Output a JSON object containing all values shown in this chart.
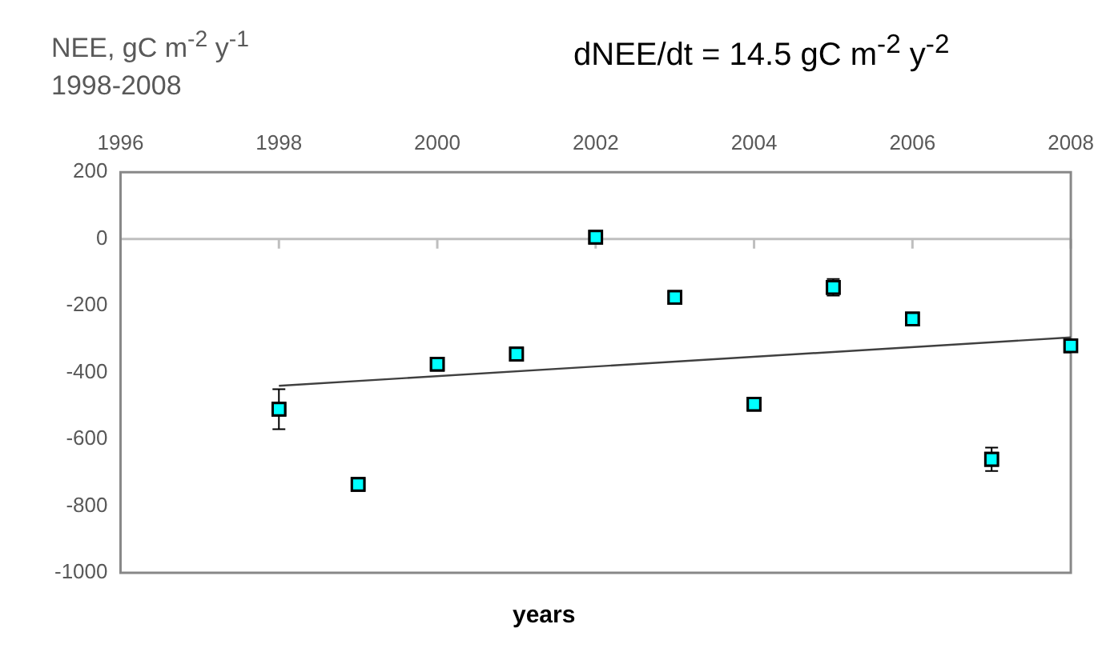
{
  "chart_data": {
    "type": "scatter",
    "title": "dNEE/dt = 14.5 gC m$^{-2}$ y$^{-2}$",
    "subtitle": "1998-2008",
    "ylabel": "NEE, gC m$^{-2}$ y$^{-1}$",
    "xlabel": "years",
    "xlim": [
      1996,
      2008
    ],
    "xticks": [
      1996,
      1998,
      2000,
      2002,
      2004,
      2006,
      2008
    ],
    "ylim": [
      -1000,
      200
    ],
    "yticks": [
      -1000,
      -800,
      -600,
      -400,
      -200,
      0,
      200
    ],
    "grid": false,
    "legend": false,
    "marker": "square",
    "ref_lines": [
      {
        "axis": "y",
        "value": 0,
        "color": "#bfbfbf"
      }
    ],
    "series": [
      {
        "color": "#00ffff",
        "x": [
          1998,
          1999,
          2000,
          2001,
          2002,
          2003,
          2004,
          2005,
          2006,
          2007,
          2008
        ],
        "values": [
          -510,
          -735,
          -375,
          -345,
          5,
          -175,
          -495,
          -145,
          -240,
          -660,
          -320
        ],
        "errors": [
          60,
          null,
          null,
          null,
          null,
          null,
          null,
          25,
          null,
          35,
          null
        ]
      },
      {
        "type": "line",
        "color": "#404040",
        "x": [
          1998,
          2008
        ],
        "values": [
          -440,
          -295
        ],
        "marker": "none",
        "line_style": "solid"
      }
    ]
  }
}
